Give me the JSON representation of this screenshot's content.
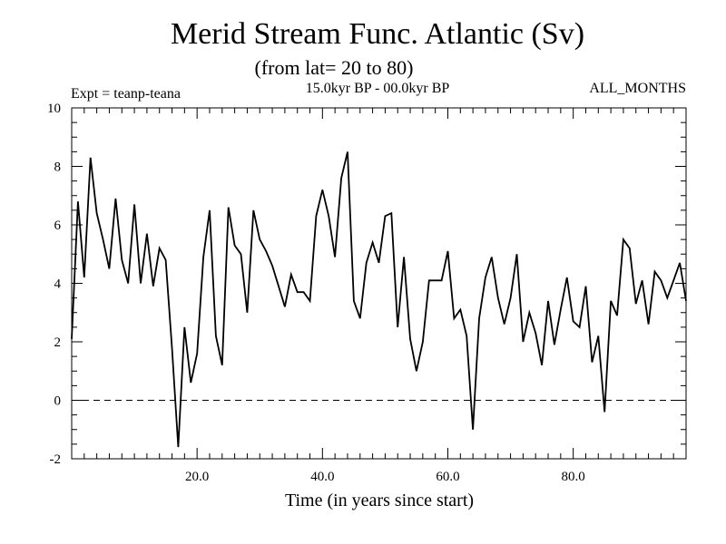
{
  "chart_data": {
    "type": "line",
    "title": "Merid Stream Func. Atlantic (Sv)",
    "subtitle": "(from lat= 20 to 80)",
    "annotations": {
      "left": "Expt = teanp-teana",
      "center": "15.0kyr BP - 00.0kyr BP",
      "right": "ALL_MONTHS"
    },
    "xlabel": "Time (in years since start)",
    "ylabel": "",
    "xlim": [
      0,
      98
    ],
    "ylim": [
      -2,
      10
    ],
    "xticks": [
      20,
      40,
      60,
      80
    ],
    "xtick_labels": [
      "20.0",
      "40.0",
      "60.0",
      "80.0"
    ],
    "yticks": [
      -2,
      0,
      2,
      4,
      6,
      8,
      10
    ],
    "ytick_labels": [
      "-2",
      "0",
      "2",
      "4",
      "6",
      "8",
      "10"
    ],
    "reference_line": {
      "y": 0,
      "style": "dashed"
    },
    "grid": false,
    "series": [
      {
        "x": [
          0,
          1,
          2,
          3,
          4,
          5,
          6,
          7,
          8,
          9,
          10,
          11,
          12,
          13,
          14,
          15,
          16,
          17,
          18,
          19,
          20,
          21,
          22,
          23,
          24,
          25,
          26,
          27,
          28,
          29,
          30,
          31,
          32,
          33,
          34,
          35,
          36,
          37,
          38,
          39,
          40,
          41,
          42,
          43,
          44,
          45,
          46,
          47,
          48,
          49,
          50,
          51,
          52,
          53,
          54,
          55,
          56,
          57,
          58,
          59,
          60,
          61,
          62,
          63,
          64,
          65,
          66,
          67,
          68,
          69,
          70,
          71,
          72,
          73,
          74,
          75,
          76,
          77,
          78,
          79,
          80,
          81,
          82,
          83,
          84,
          85,
          86,
          87,
          88,
          89,
          90,
          91,
          92,
          93,
          94,
          95,
          96,
          97,
          98
        ],
        "values": [
          2.1,
          6.8,
          4.2,
          8.3,
          6.4,
          5.5,
          4.5,
          6.9,
          4.8,
          4.0,
          6.7,
          4.0,
          5.7,
          3.9,
          5.2,
          4.8,
          1.8,
          -1.6,
          2.5,
          0.6,
          1.6,
          4.9,
          6.5,
          2.2,
          1.2,
          6.6,
          5.3,
          5.0,
          3.0,
          6.5,
          5.5,
          5.1,
          4.6,
          3.9,
          3.2,
          4.3,
          3.7,
          3.7,
          3.4,
          6.3,
          7.2,
          6.3,
          4.9,
          7.6,
          8.5,
          3.4,
          2.8,
          4.7,
          5.4,
          4.7,
          6.3,
          6.4,
          2.5,
          4.9,
          2.1,
          1.0,
          2.0,
          4.1,
          4.1,
          4.1,
          5.1,
          2.8,
          3.1,
          2.2,
          -1.0,
          2.8,
          4.2,
          4.9,
          3.5,
          2.6,
          3.5,
          5.0,
          2.0,
          3.0,
          2.3,
          1.2,
          3.4,
          1.9,
          3.1,
          4.2,
          2.7,
          2.5,
          3.9,
          1.3,
          2.2,
          -0.4,
          3.4,
          2.9,
          5.5,
          5.2,
          3.3,
          4.1,
          2.6,
          4.4,
          4.1,
          3.5,
          4.1,
          4.7,
          3.4
        ]
      }
    ]
  }
}
